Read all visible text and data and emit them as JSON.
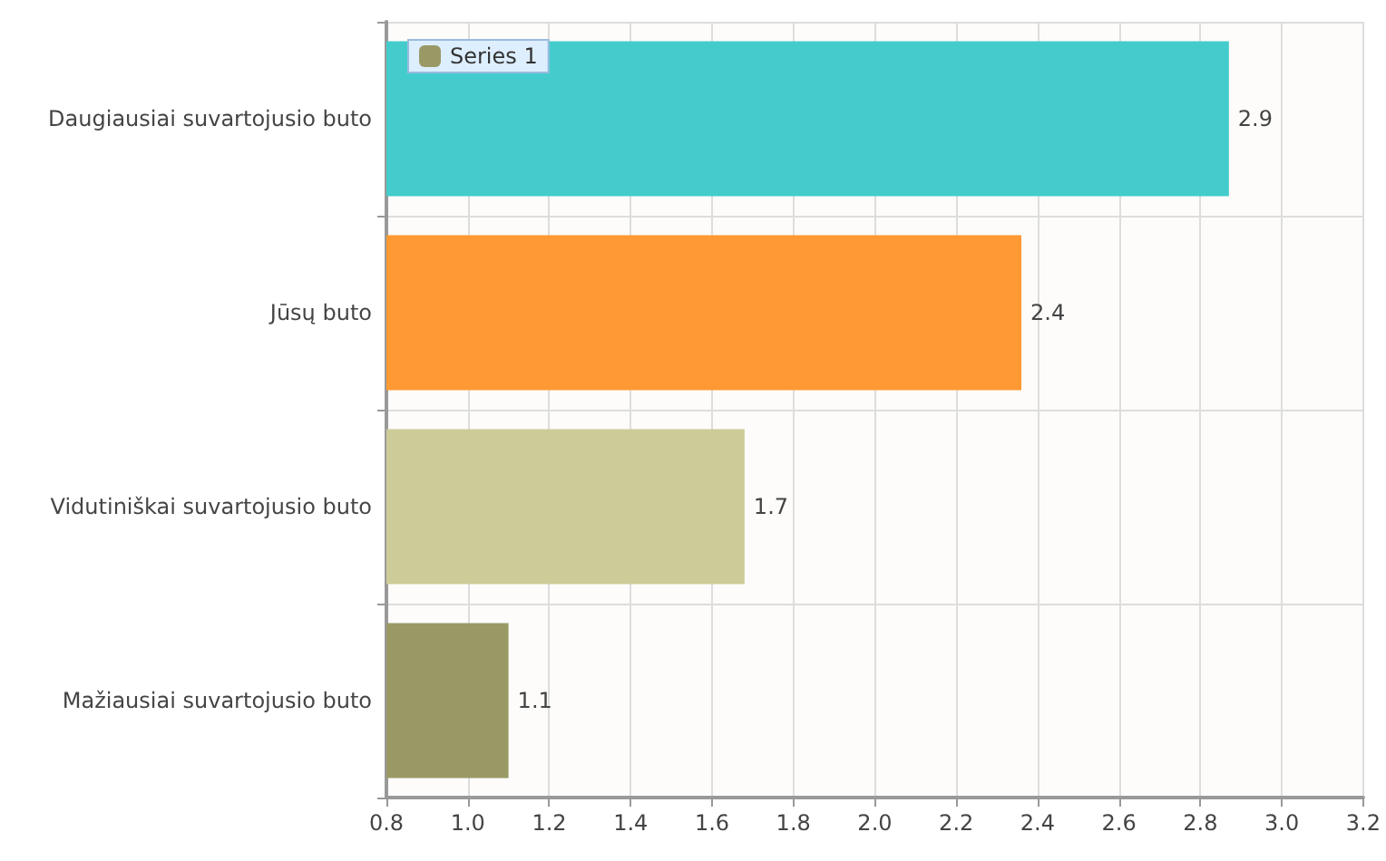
{
  "chart_data": {
    "type": "bar",
    "orientation": "horizontal",
    "categories": [
      "Daugiausiai suvartojusio buto",
      "Jūsų buto",
      "Vidutiniškai suvartojusio buto",
      "Mažiausiai suvartojusio buto"
    ],
    "series": [
      {
        "name": "Series 1",
        "color": "#999966",
        "colors": [
          "#44cccc",
          "#ff9933",
          "#cccc99",
          "#999966"
        ],
        "values": [
          2.87,
          2.36,
          1.68,
          1.1
        ],
        "value_labels": [
          "2.9",
          "2.4",
          "1.7",
          "1.1"
        ]
      }
    ],
    "xlim": [
      0.8,
      3.2
    ],
    "xticks": [
      0.8,
      {
        "value": 1,
        "label": "1.0"
      },
      1.2,
      1.4,
      1.6,
      1.8,
      {
        "value": 2,
        "label": "2.0"
      },
      2.2,
      2.4,
      2.6,
      2.8,
      {
        "value": 3,
        "label": "3.0"
      },
      3.2
    ],
    "grid": true,
    "legend": "top left"
  }
}
